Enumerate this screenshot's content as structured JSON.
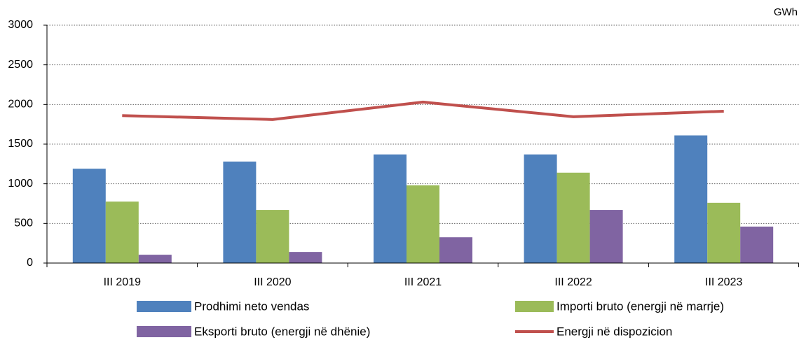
{
  "chart_data": {
    "type": "bar",
    "unit_label": "GWh",
    "categories": [
      "III 2019",
      "III 2020",
      "III 2021",
      "III 2022",
      "III 2023"
    ],
    "series": [
      {
        "name": "Prodhimi neto vendas",
        "color": "#4f81bd",
        "values": [
          1190,
          1280,
          1370,
          1370,
          1610
        ]
      },
      {
        "name": "Importi bruto (energji në marrje)",
        "color": "#9bbb59",
        "values": [
          775,
          670,
          980,
          1140,
          760
        ]
      },
      {
        "name": "Eksporti bruto (energji në dhënie)",
        "color": "#8064a2",
        "values": [
          105,
          140,
          325,
          670,
          460
        ]
      },
      {
        "name": "Energji në dispozicion",
        "color": "#c0504d",
        "type": "line",
        "values": [
          1860,
          1810,
          2030,
          1845,
          1915
        ]
      }
    ],
    "ylim": [
      0,
      3000
    ],
    "yticks": [
      0,
      500,
      1000,
      1500,
      2000,
      2500,
      3000
    ],
    "grid": true
  }
}
